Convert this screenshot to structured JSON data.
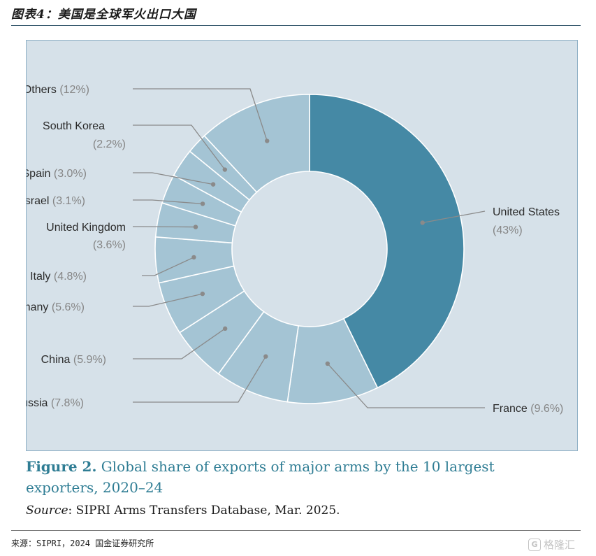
{
  "page": {
    "title": "图表4：美国是全球军火出口大国",
    "figure_label": "Figure 2.",
    "figure_caption": "Global share of exports of major arms by the 10 largest exporters, 2020–24",
    "source_label": "Source",
    "source_text": ": SIPRI Arms Transfers Database, Mar. 2025.",
    "footer_note": "来源：SIPRI，2024 国金证券研究所",
    "watermark": "格隆汇"
  },
  "chart_data": {
    "type": "pie",
    "donut": true,
    "categories": [
      "United States",
      "France",
      "Russia",
      "China",
      "Germany",
      "Italy",
      "United Kingdom",
      "Israel",
      "Spain",
      "South Korea",
      "Others"
    ],
    "values": [
      43,
      9.6,
      7.8,
      5.9,
      5.6,
      4.8,
      3.6,
      3.1,
      3.0,
      2.2,
      12
    ],
    "value_labels": [
      "(43%)",
      "(9.6%)",
      "(7.8%)",
      "(5.9%)",
      "(5.6%)",
      "(4.8%)",
      "(3.6%)",
      "(3.1%)",
      "(3.0%)",
      "(2.2%)",
      "(12%)"
    ],
    "colors": {
      "highlight": "#4589a5",
      "other": "#a4c4d4",
      "background": "#d6e1e9",
      "leader": "#8a8a8a",
      "label_text": "#2b2b2b",
      "value_text": "#858585"
    }
  }
}
